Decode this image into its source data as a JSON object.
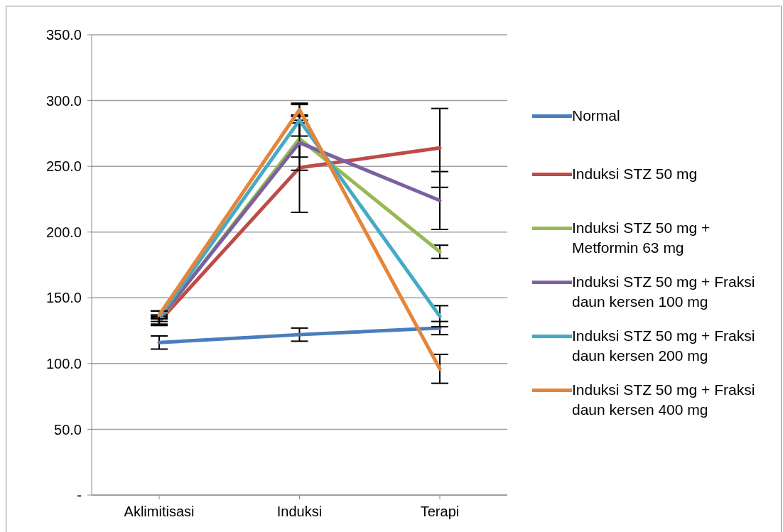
{
  "chart_data": {
    "type": "line",
    "categories": [
      "Aklimitisasi",
      "Induksi",
      "Terapi"
    ],
    "series": [
      {
        "name": "Normal",
        "color": "#4a7ebb",
        "values": [
          116,
          122,
          127
        ],
        "errors": [
          5,
          5,
          5
        ]
      },
      {
        "name": "Induksi STZ 50 mg",
        "color": "#be4b48",
        "values": [
          132,
          249,
          264
        ],
        "errors": [
          3,
          34,
          30
        ]
      },
      {
        "name": "Induksi STZ 50 mg + Metformin 63 mg",
        "color": "#98b954",
        "values": [
          133,
          271,
          185
        ],
        "errors": [
          4,
          14,
          5
        ]
      },
      {
        "name": "Induksi STZ 50 mg + Fraksi daun kersen 100 mg",
        "color": "#7d60a0",
        "values": [
          134,
          268,
          224
        ],
        "errors": [
          2,
          21,
          22
        ]
      },
      {
        "name": "Induksi STZ 50 mg + Fraksi daun kersen 200 mg",
        "color": "#46aac5",
        "values": [
          135,
          285,
          136
        ],
        "errors": [
          5,
          12,
          8
        ]
      },
      {
        "name": "Induksi STZ 50 mg + Fraksi daun kersen 400 mg",
        "color": "#e5853a",
        "values": [
          137,
          293,
          96
        ],
        "errors": [
          3,
          5,
          11
        ]
      }
    ],
    "ylim": [
      0,
      350
    ],
    "yticks": [
      {
        "value": 0,
        "label": "-"
      },
      {
        "value": 50,
        "label": "50.0"
      },
      {
        "value": 100,
        "label": "100.0"
      },
      {
        "value": 150,
        "label": "150.0"
      },
      {
        "value": 200,
        "label": "200.0"
      },
      {
        "value": 250,
        "label": "250.0"
      },
      {
        "value": 300,
        "label": "300.0"
      },
      {
        "value": 350,
        "label": "350.0"
      }
    ],
    "grid": "y",
    "legend": "right",
    "marker": "none",
    "line_style": "solid"
  }
}
